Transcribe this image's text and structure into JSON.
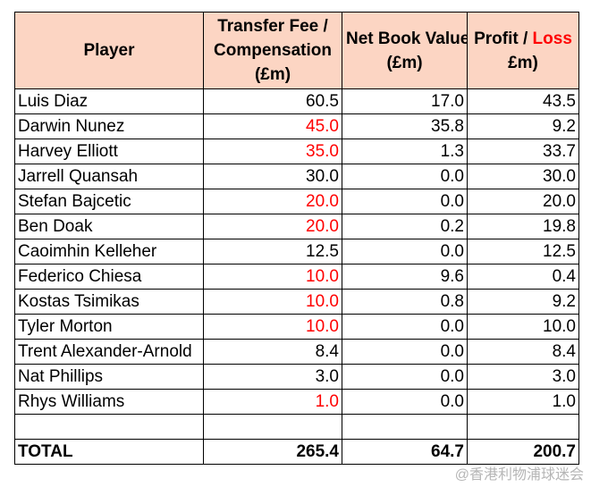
{
  "headers": {
    "player": "Player",
    "transfer_fee_line1": "Transfer Fee /",
    "transfer_fee_line2": "Compensation",
    "transfer_fee_line3": "(£m)",
    "nbv_line1": "Net Book Value",
    "nbv_line2": "(£m)",
    "profit_word": "Profit",
    "profit_sep": " / ",
    "loss_word": "Loss",
    "profit_line2": "£m)"
  },
  "rows": [
    {
      "player": "Luis Diaz",
      "fee": "60.5",
      "fee_red": false,
      "nbv": "17.0",
      "profit": "43.5"
    },
    {
      "player": "Darwin Nunez",
      "fee": "45.0",
      "fee_red": true,
      "nbv": "35.8",
      "profit": "9.2"
    },
    {
      "player": "Harvey Elliott",
      "fee": "35.0",
      "fee_red": true,
      "nbv": "1.3",
      "profit": "33.7"
    },
    {
      "player": "Jarrell Quansah",
      "fee": "30.0",
      "fee_red": false,
      "nbv": "0.0",
      "profit": "30.0"
    },
    {
      "player": "Stefan Bajcetic",
      "fee": "20.0",
      "fee_red": true,
      "nbv": "0.0",
      "profit": "20.0"
    },
    {
      "player": "Ben Doak",
      "fee": "20.0",
      "fee_red": true,
      "nbv": "0.2",
      "profit": "19.8"
    },
    {
      "player": "Caoimhin Kelleher",
      "fee": "12.5",
      "fee_red": false,
      "nbv": "0.0",
      "profit": "12.5"
    },
    {
      "player": "Federico Chiesa",
      "fee": "10.0",
      "fee_red": true,
      "nbv": "9.6",
      "profit": "0.4"
    },
    {
      "player": "Kostas Tsimikas",
      "fee": "10.0",
      "fee_red": true,
      "nbv": "0.8",
      "profit": "9.2"
    },
    {
      "player": "Tyler Morton",
      "fee": "10.0",
      "fee_red": true,
      "nbv": "0.0",
      "profit": "10.0"
    },
    {
      "player": "Trent Alexander-Arnold",
      "fee": "8.4",
      "fee_red": false,
      "nbv": "0.0",
      "profit": "8.4"
    },
    {
      "player": "Nat Phillips",
      "fee": "3.0",
      "fee_red": false,
      "nbv": "0.0",
      "profit": "3.0"
    },
    {
      "player": "Rhys Williams",
      "fee": "1.0",
      "fee_red": true,
      "nbv": "0.0",
      "profit": "1.0"
    }
  ],
  "total": {
    "label": "TOTAL",
    "fee": "265.4",
    "nbv": "64.7",
    "profit": "200.7"
  },
  "colors": {
    "header_bg": "#fcd5c3",
    "loss_red": "#ff0000"
  },
  "watermark": "@香港利物浦球迷会"
}
